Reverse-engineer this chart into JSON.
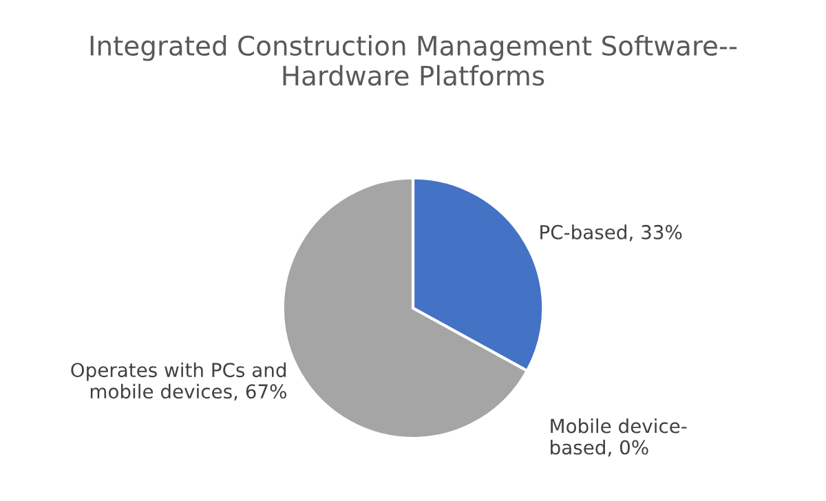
{
  "chart_data": {
    "type": "pie",
    "title": "Integrated Construction Management Software--Hardware Platforms",
    "categories": [
      "PC-based, 33%",
      "Mobile device-based, 0%",
      "Operates with PCs and mobile devices, 67%"
    ],
    "values": [
      33,
      0,
      67
    ],
    "colors": [
      "#4472c4",
      "#ed7d31",
      "#a5a5a5"
    ],
    "legend": false
  }
}
